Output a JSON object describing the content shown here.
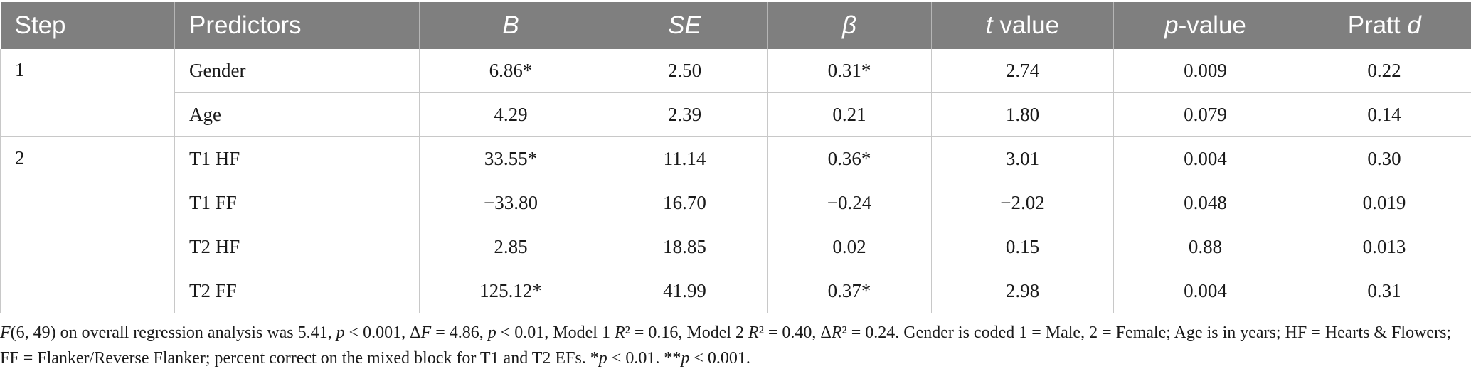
{
  "table": {
    "headers": {
      "step": "Step",
      "predictors": "Predictors",
      "b": "B",
      "se": "SE",
      "beta": "β",
      "t_italic": "t",
      "t_rest": " value",
      "p_italic": "p",
      "p_rest": "-value",
      "pratt_plain": "Pratt ",
      "pratt_italic": "d"
    },
    "header_colors": {
      "background": "#7f7f7f",
      "text": "#ffffff"
    },
    "steps": [
      {
        "step": "1",
        "rows": [
          {
            "predictor": "Gender",
            "b": "6.86*",
            "se": "2.50",
            "beta": "0.31*",
            "t": "2.74",
            "p": "0.009",
            "pratt": "0.22"
          },
          {
            "predictor": "Age",
            "b": "4.29",
            "se": "2.39",
            "beta": "0.21",
            "t": "1.80",
            "p": "0.079",
            "pratt": "0.14"
          }
        ]
      },
      {
        "step": "2",
        "rows": [
          {
            "predictor": "T1 HF",
            "b": "33.55*",
            "se": "11.14",
            "beta": "0.36*",
            "t": "3.01",
            "p": "0.004",
            "pratt": "0.30"
          },
          {
            "predictor": "T1 FF",
            "b": "−33.80",
            "se": "16.70",
            "beta": "−0.24",
            "t": "−2.02",
            "p": "0.048",
            "pratt": "0.019"
          },
          {
            "predictor": "T2 HF",
            "b": "2.85",
            "se": "18.85",
            "beta": "0.02",
            "t": "0.15",
            "p": "0.88",
            "pratt": "0.013"
          },
          {
            "predictor": "T2 FF",
            "b": "125.12*",
            "se": "41.99",
            "beta": "0.37*",
            "t": "2.98",
            "p": "0.004",
            "pratt": "0.31"
          }
        ]
      }
    ]
  },
  "footnote": {
    "segments": [
      {
        "text": "F",
        "italic": true
      },
      {
        "text": "(6, 49) on overall regression analysis was 5.41, ",
        "italic": false
      },
      {
        "text": "p",
        "italic": true
      },
      {
        "text": " < 0.001, Δ",
        "italic": false
      },
      {
        "text": "F",
        "italic": true
      },
      {
        "text": " = 4.86, ",
        "italic": false
      },
      {
        "text": "p",
        "italic": true
      },
      {
        "text": " < 0.01, Model 1 ",
        "italic": false
      },
      {
        "text": "R",
        "italic": true
      },
      {
        "text": "² = 0.16, Model 2 ",
        "italic": false
      },
      {
        "text": "R",
        "italic": true
      },
      {
        "text": "² = 0.40, Δ",
        "italic": false
      },
      {
        "text": "R",
        "italic": true
      },
      {
        "text": "² = 0.24. Gender is coded 1 = Male, 2 = Female; Age is in years; HF = Hearts & Flowers; FF = Flanker/Reverse Flanker; percent correct on the mixed block for T1 and T2 EFs. *",
        "italic": false
      },
      {
        "text": "p",
        "italic": true
      },
      {
        "text": " < 0.01. **",
        "italic": false
      },
      {
        "text": "p",
        "italic": true
      },
      {
        "text": " < 0.001.",
        "italic": false
      }
    ]
  }
}
